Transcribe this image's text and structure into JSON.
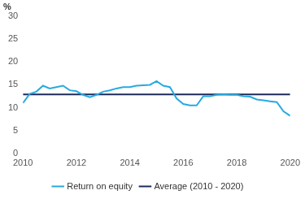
{
  "chart_data": {
    "type": "line",
    "ylabel": "%",
    "x": [
      2010,
      2010.25,
      2010.5,
      2010.75,
      2011,
      2011.25,
      2011.5,
      2011.75,
      2012,
      2012.25,
      2012.5,
      2012.75,
      2013,
      2013.25,
      2013.5,
      2013.75,
      2014,
      2014.25,
      2014.5,
      2014.75,
      2015,
      2015.25,
      2015.5,
      2015.75,
      2016,
      2016.25,
      2016.5,
      2016.75,
      2017,
      2017.25,
      2017.5,
      2017.75,
      2018,
      2018.25,
      2018.5,
      2018.75,
      2019,
      2019.25,
      2019.5,
      2019.75,
      2020
    ],
    "series": [
      {
        "name": "Return on equity",
        "color": "#27aae1",
        "values": [
          11,
          13,
          13.5,
          14.8,
          14.2,
          14.5,
          14.8,
          13.8,
          13.6,
          12.8,
          12.3,
          12.8,
          13.5,
          13.8,
          14.2,
          14.5,
          14.5,
          14.8,
          14.9,
          15,
          15.8,
          14.8,
          14.5,
          12,
          10.8,
          10.5,
          10.5,
          12.5,
          12.5,
          12.8,
          12.9,
          12.8,
          12.8,
          12.5,
          12.4,
          11.8,
          11.6,
          11.4,
          11.2,
          9.2,
          8.2
        ]
      },
      {
        "name": "Average (2010 - 2020)",
        "color": "#1c2a5a",
        "values": [
          12.9,
          12.9,
          12.9,
          12.9,
          12.9,
          12.9,
          12.9,
          12.9,
          12.9,
          12.9,
          12.9,
          12.9,
          12.9,
          12.9,
          12.9,
          12.9,
          12.9,
          12.9,
          12.9,
          12.9,
          12.9,
          12.9,
          12.9,
          12.9,
          12.9,
          12.9,
          12.9,
          12.9,
          12.9,
          12.9,
          12.9,
          12.9,
          12.9,
          12.9,
          12.9,
          12.9,
          12.9,
          12.9,
          12.9,
          12.9,
          12.9
        ]
      }
    ],
    "xlim": [
      2010,
      2020
    ],
    "xticks": [
      2010,
      2012,
      2014,
      2016,
      2018,
      2020
    ],
    "ylim": [
      0,
      30
    ],
    "yticks": [
      0,
      5,
      10,
      15,
      20,
      25,
      30
    ],
    "grid": false,
    "legend": "bottom"
  }
}
